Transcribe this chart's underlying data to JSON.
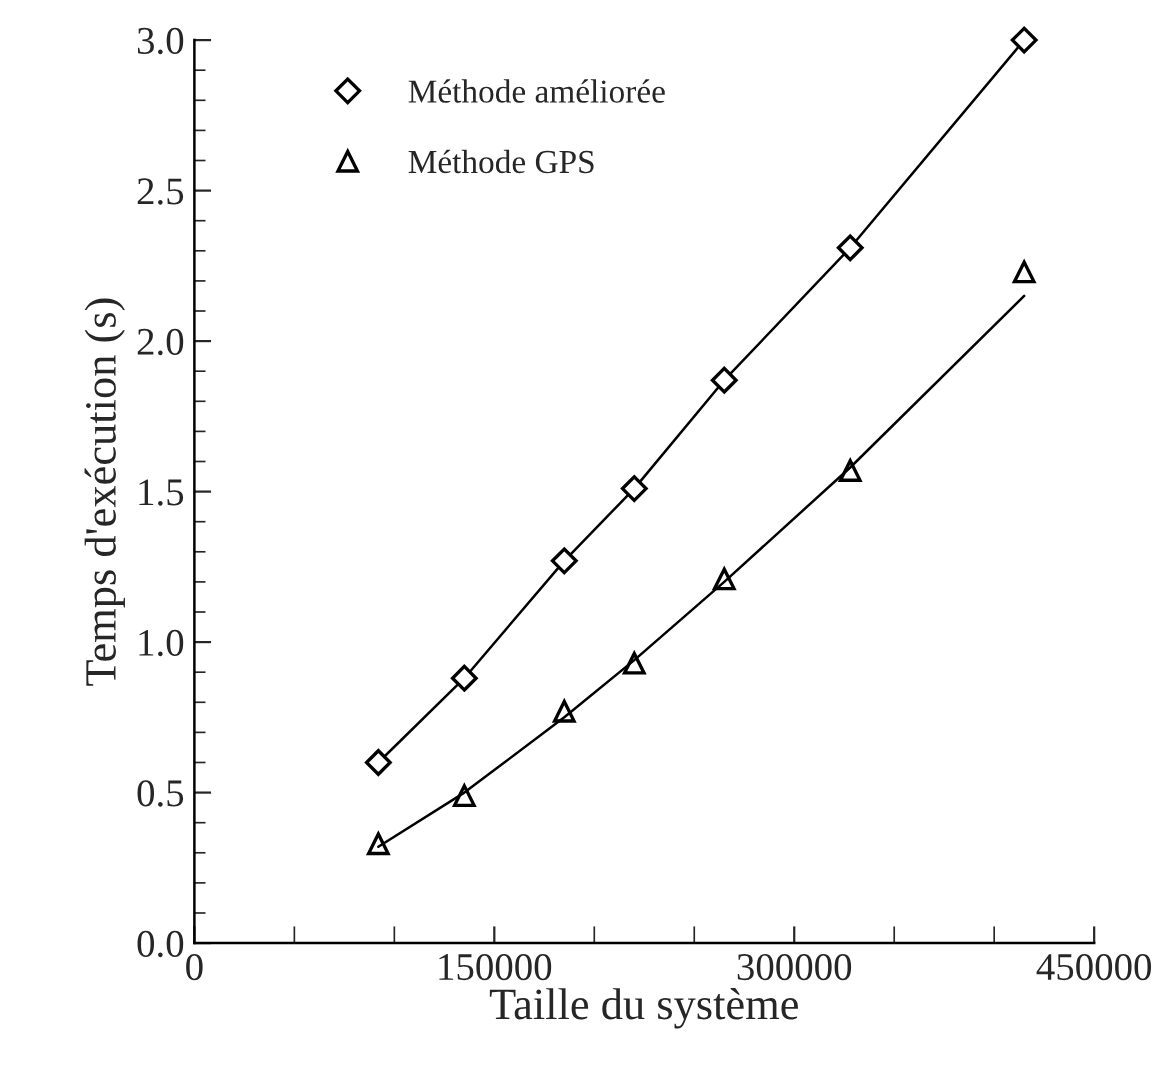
{
  "chart_data": {
    "type": "scatter",
    "xlabel": "Taille du système",
    "ylabel": "Temps d'exécution (s)",
    "xlim": [
      0,
      450000
    ],
    "ylim": [
      0,
      3.0
    ],
    "xticks": [
      0,
      {
        "value": 50000,
        "label": null
      },
      {
        "value": 100000,
        "label": null
      },
      150000,
      {
        "value": 200000,
        "label": null
      },
      {
        "value": 250000,
        "label": null
      },
      300000,
      {
        "value": 350000,
        "label": null
      },
      {
        "value": 400000,
        "label": null
      },
      450000
    ],
    "yticks": [
      {
        "value": 0,
        "label": "0.0"
      },
      {
        "value": 0.1,
        "label": null
      },
      {
        "value": 0.2,
        "label": null
      },
      {
        "value": 0.3,
        "label": null
      },
      {
        "value": 0.4,
        "label": null
      },
      {
        "value": 0.5,
        "label": "0.5"
      },
      {
        "value": 0.6,
        "label": null
      },
      {
        "value": 0.7,
        "label": null
      },
      {
        "value": 0.8,
        "label": null
      },
      {
        "value": 0.9,
        "label": null
      },
      {
        "value": 1.0,
        "label": "1.0"
      },
      {
        "value": 1.1,
        "label": null
      },
      {
        "value": 1.2,
        "label": null
      },
      {
        "value": 1.3,
        "label": null
      },
      {
        "value": 1.4,
        "label": null
      },
      {
        "value": 1.5,
        "label": "1.5"
      },
      {
        "value": 1.6,
        "label": null
      },
      {
        "value": 1.7,
        "label": null
      },
      {
        "value": 1.8,
        "label": null
      },
      {
        "value": 1.9,
        "label": null
      },
      {
        "value": 2.0,
        "label": "2.0"
      },
      {
        "value": 2.1,
        "label": null
      },
      {
        "value": 2.2,
        "label": null
      },
      {
        "value": 2.3,
        "label": null
      },
      {
        "value": 2.4,
        "label": null
      },
      {
        "value": 2.5,
        "label": "2.5"
      },
      {
        "value": 2.6,
        "label": null
      },
      {
        "value": 2.7,
        "label": null
      },
      {
        "value": 2.8,
        "label": null
      },
      {
        "value": 2.9,
        "label": null
      },
      {
        "value": 3.0,
        "label": "3.0"
      }
    ],
    "grid": false,
    "legend": "top left",
    "series": [
      {
        "name": "Méthode améliorée",
        "type": "line",
        "marker": "diamond",
        "color": "#000000",
        "x": [
          92000,
          135000,
          185000,
          220000,
          265000,
          328000,
          415000
        ],
        "values": [
          0.6,
          0.88,
          1.27,
          1.51,
          1.87,
          2.31,
          3.0
        ]
      },
      {
        "name": "Méthode GPS",
        "marker": "triangle",
        "color": "#000000",
        "x": [
          92000,
          135000,
          185000,
          220000,
          265000,
          328000,
          415000
        ],
        "values": [
          0.33,
          0.49,
          0.77,
          0.93,
          1.21,
          1.57,
          2.23
        ]
      },
      {
        "type": "line",
        "marker": "none",
        "color": "#000000",
        "x": [
          92000,
          135000,
          185000,
          220000,
          265000,
          328000,
          415000
        ],
        "values": [
          0.32,
          0.5,
          0.75,
          0.94,
          1.2,
          1.58,
          2.15
        ]
      }
    ]
  }
}
